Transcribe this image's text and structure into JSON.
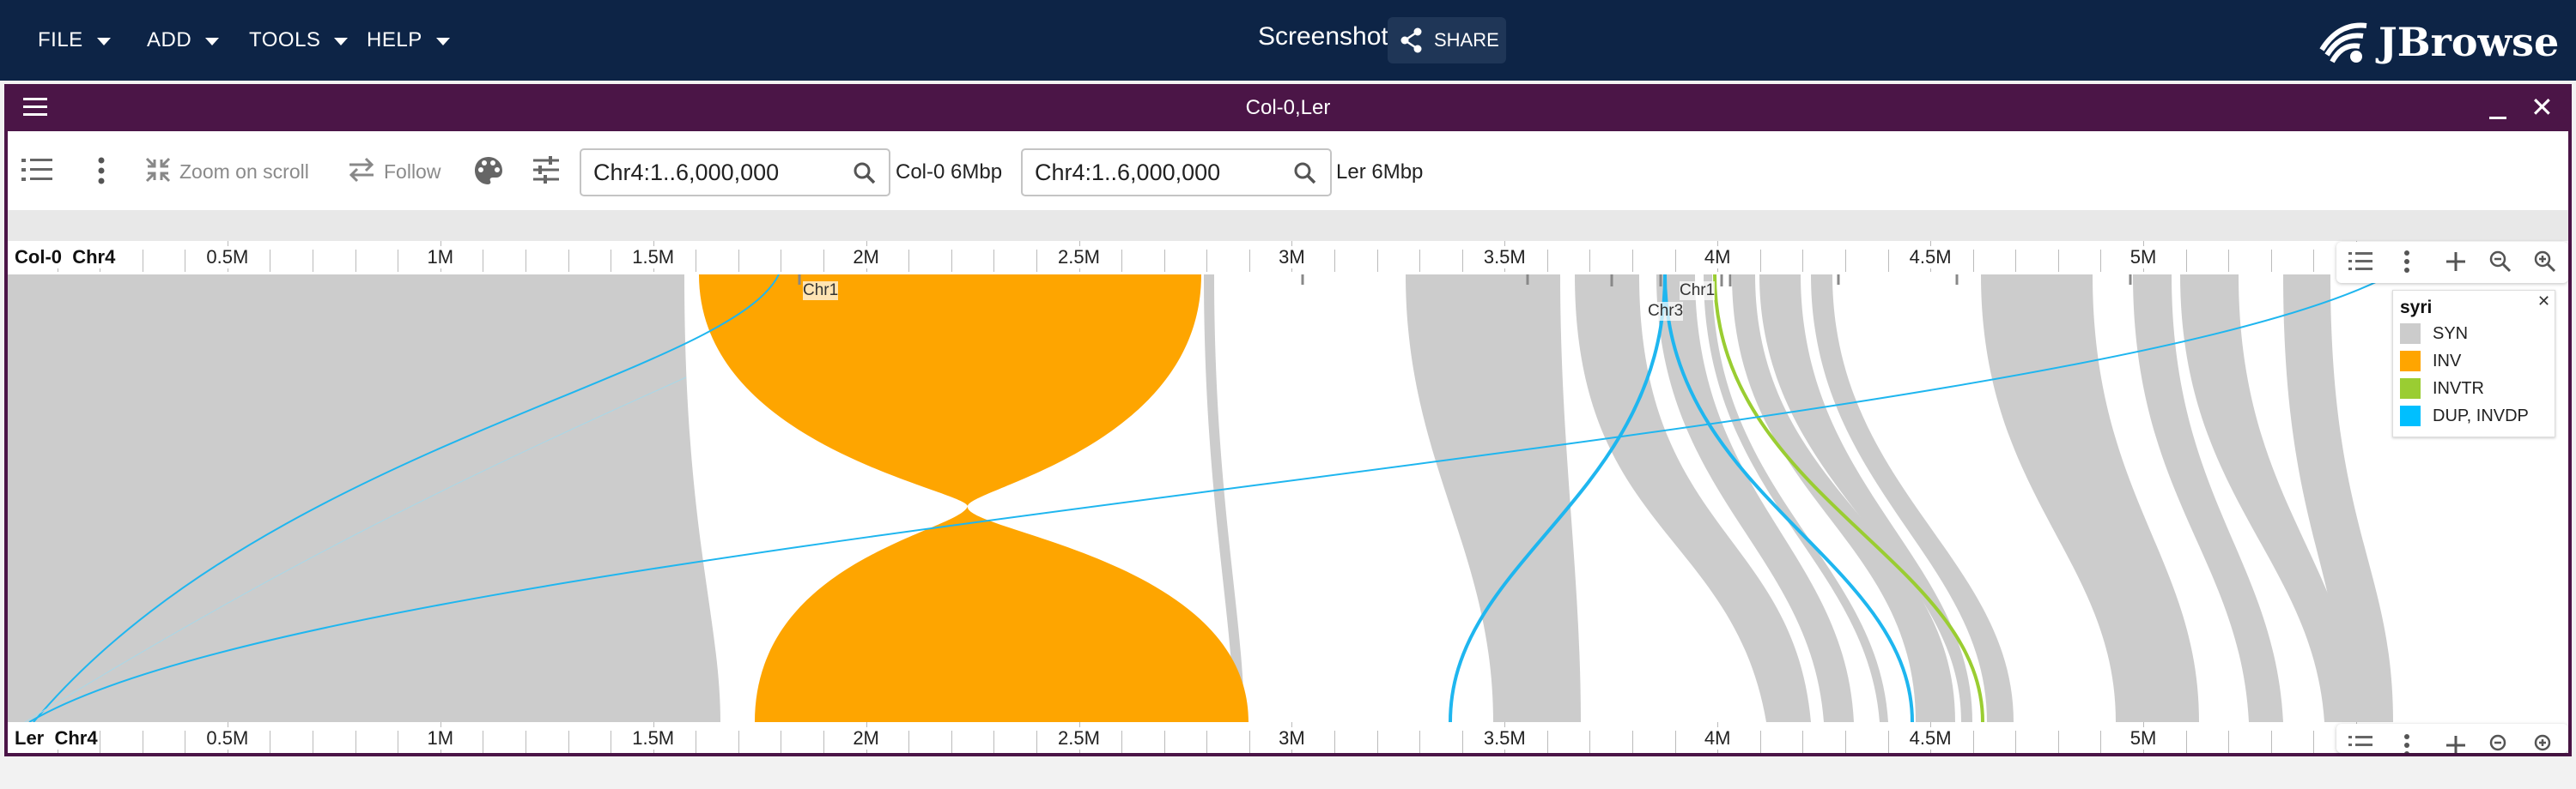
{
  "appbar": {
    "menus": [
      "FILE",
      "ADD",
      "TOOLS",
      "HELP"
    ],
    "session_title": "Screenshot",
    "share_label": "SHARE",
    "logo_text": "JBrowse"
  },
  "view": {
    "title": "Col-0,Ler",
    "toolbar": {
      "zoom_on_scroll_label": "Zoom on scroll",
      "follow_label": "Follow",
      "top_location": "Chr4:1..6,000,000",
      "top_assembly_label": "Col-0 6Mbp",
      "bottom_location": "Chr4:1..6,000,000",
      "bottom_assembly_label": "Ler 6Mbp"
    },
    "top_ruler": {
      "name": "Col-0",
      "chrom": "Chr4",
      "labels": [
        "0.5M",
        "1M",
        "1.5M",
        "2M",
        "2.5M",
        "3M",
        "3.5M",
        "4M",
        "4.5M",
        "5M"
      ]
    },
    "bottom_ruler": {
      "name": "Ler",
      "chrom": "Chr4",
      "labels": [
        "0.5M",
        "1M",
        "1.5M",
        "2M",
        "2.5M",
        "3M",
        "3.5M",
        "4M",
        "4.5M",
        "5M"
      ]
    },
    "feature_labels": [
      "Chr1",
      "Chr3",
      "Chr1"
    ],
    "legend": {
      "title": "syri",
      "items": [
        {
          "label": "SYN",
          "color": "#cccccc"
        },
        {
          "label": "INV",
          "color": "#ffa500"
        },
        {
          "label": "INVTR",
          "color": "#9acd32"
        },
        {
          "label": "DUP, INVDP",
          "color": "#00bfff"
        }
      ]
    }
  }
}
